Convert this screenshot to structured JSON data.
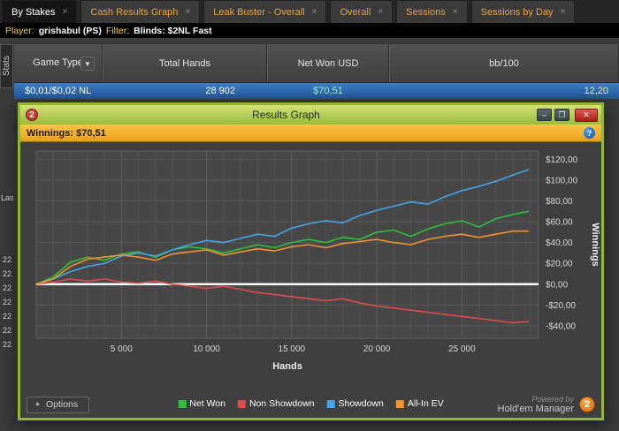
{
  "tabs": [
    {
      "label": "By Stakes",
      "active": true
    },
    {
      "label": "Cash Results Graph",
      "active": false
    },
    {
      "label": "Leak Buster - Overall",
      "active": false
    },
    {
      "label": "Overall",
      "active": false
    },
    {
      "label": "Sessions",
      "active": false
    },
    {
      "label": "Sessions by Day",
      "active": false
    }
  ],
  "filter_bar": {
    "player_label": "Player:",
    "player_value": "grishabul (PS)",
    "filter_label": "Filter:",
    "filter_value": "Blinds: $2NL Fast"
  },
  "stats_tab_label": "Stats",
  "table": {
    "columns": {
      "game_type": "Game Type",
      "total_hands": "Total Hands",
      "net_won": "Net Won USD",
      "bb100": "bb/100"
    },
    "row": {
      "game_type": "$0,01/$0,02 NL",
      "total_hands": "28 902",
      "net_won": "$70,51",
      "bb100": "12,20"
    }
  },
  "left_fragments": {
    "partial_label": "Las",
    "rows": [
      "22",
      "22",
      "22",
      "22",
      "22",
      "22",
      "22"
    ]
  },
  "dialog": {
    "logo": "2",
    "title": "Results Graph",
    "buttons": {
      "minimize": "–",
      "maximize": "❐",
      "close": "✕"
    },
    "winnings_label": "Winnings: $70,51",
    "help_icon": "?",
    "options_label": "Options",
    "powered_by": "Powered by",
    "brand": "Hold'em Manager",
    "brand_logo": "2"
  },
  "chart_data": {
    "type": "line",
    "xlabel": "Hands",
    "ylabel": "Winnings",
    "xlim": [
      0,
      29500
    ],
    "ylim": [
      -52,
      128
    ],
    "x_ticks": [
      5000,
      10000,
      15000,
      20000,
      25000
    ],
    "x_tick_labels": [
      "5 000",
      "10 000",
      "15 000",
      "20 000",
      "25 000"
    ],
    "y_ticks": [
      120,
      100,
      80,
      60,
      40,
      20,
      0,
      -20,
      -40
    ],
    "y_tick_labels": [
      "$120,00",
      "$100,00",
      "$80,00",
      "$60,00",
      "$40,00",
      "$20,00",
      "$0,00",
      "-$20,00",
      "-$40,00"
    ],
    "zero_line_value": 0,
    "grid": true,
    "legend_position": "bottom",
    "x": [
      0,
      1000,
      2000,
      3000,
      4000,
      5000,
      6000,
      7000,
      8000,
      9000,
      10000,
      11000,
      12000,
      13000,
      14000,
      15000,
      16000,
      17000,
      18000,
      19000,
      20000,
      21000,
      22000,
      23000,
      24000,
      25000,
      26000,
      27000,
      28000,
      28900
    ],
    "series": [
      {
        "name": "Net Won",
        "color": "#2fc13c",
        "values": [
          0,
          7,
          21,
          26,
          23,
          29,
          31,
          26,
          33,
          36,
          34,
          30,
          34,
          38,
          35,
          40,
          43,
          40,
          45,
          43,
          50,
          52,
          46,
          53,
          58,
          61,
          55,
          63,
          67,
          70
        ]
      },
      {
        "name": "Non Showdown",
        "color": "#e04a4a",
        "values": [
          0,
          2,
          5,
          3,
          5,
          2,
          1,
          3,
          0,
          -2,
          -4,
          -2,
          -5,
          -8,
          -10,
          -12,
          -14,
          -16,
          -14,
          -18,
          -21,
          -23,
          -25,
          -27,
          -29,
          -31,
          -33,
          -35,
          -37,
          -36
        ]
      },
      {
        "name": "Showdown",
        "color": "#46a4e8",
        "values": [
          0,
          5,
          12,
          17,
          20,
          27,
          30,
          27,
          33,
          38,
          42,
          40,
          44,
          48,
          46,
          54,
          58,
          61,
          59,
          66,
          71,
          75,
          79,
          77,
          84,
          90,
          94,
          99,
          105,
          110
        ]
      },
      {
        "name": "All-In EV",
        "color": "#f2932e",
        "values": [
          0,
          5,
          17,
          24,
          26,
          28,
          26,
          23,
          29,
          31,
          33,
          28,
          31,
          34,
          32,
          36,
          38,
          35,
          39,
          41,
          43,
          40,
          38,
          43,
          46,
          48,
          45,
          48,
          51,
          51
        ]
      }
    ],
    "final_values": {
      "Net Won": 70.51,
      "Non Showdown": -36,
      "Showdown": 110,
      "All-In EV": 51
    }
  }
}
